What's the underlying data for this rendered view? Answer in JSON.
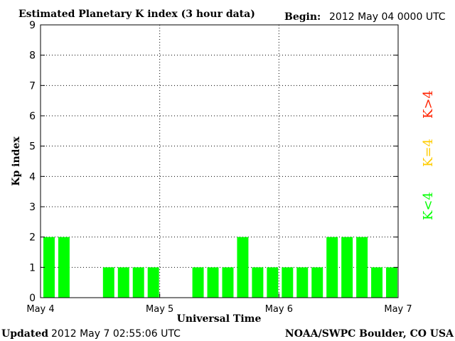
{
  "chart_data": {
    "type": "bar",
    "title": "Estimated Planetary K index (3 hour data)",
    "begin_label": "Begin:",
    "begin_value": "2012 May 04 0000 UTC",
    "xlabel": "Universal Time",
    "ylabel": "Kp index",
    "ylim": [
      0,
      9
    ],
    "xlim_slots": [
      0,
      24
    ],
    "grid": true,
    "x_tick_labels": [
      "May 4",
      "May 5",
      "May 6",
      "May 7"
    ],
    "y_tick_labels": [
      "0",
      "1",
      "2",
      "3",
      "4",
      "5",
      "6",
      "7",
      "8",
      "9"
    ],
    "bar_color": "#00ff00",
    "values": [
      2,
      2,
      0,
      0,
      1,
      1,
      1,
      1,
      0,
      0,
      1,
      1,
      1,
      2,
      1,
      1,
      1,
      1,
      1,
      2,
      2,
      2,
      1,
      1
    ],
    "legend": [
      {
        "label": "K<4",
        "color": "#00ff00"
      },
      {
        "label": "K=4",
        "color": "#ffcc00"
      },
      {
        "label": "K>4",
        "color": "#ff2200"
      }
    ]
  },
  "footer": {
    "updated_label": "Updated",
    "updated_value": "2012 May  7 02:55:06 UTC",
    "source": "NOAA/SWPC Boulder, CO USA"
  }
}
